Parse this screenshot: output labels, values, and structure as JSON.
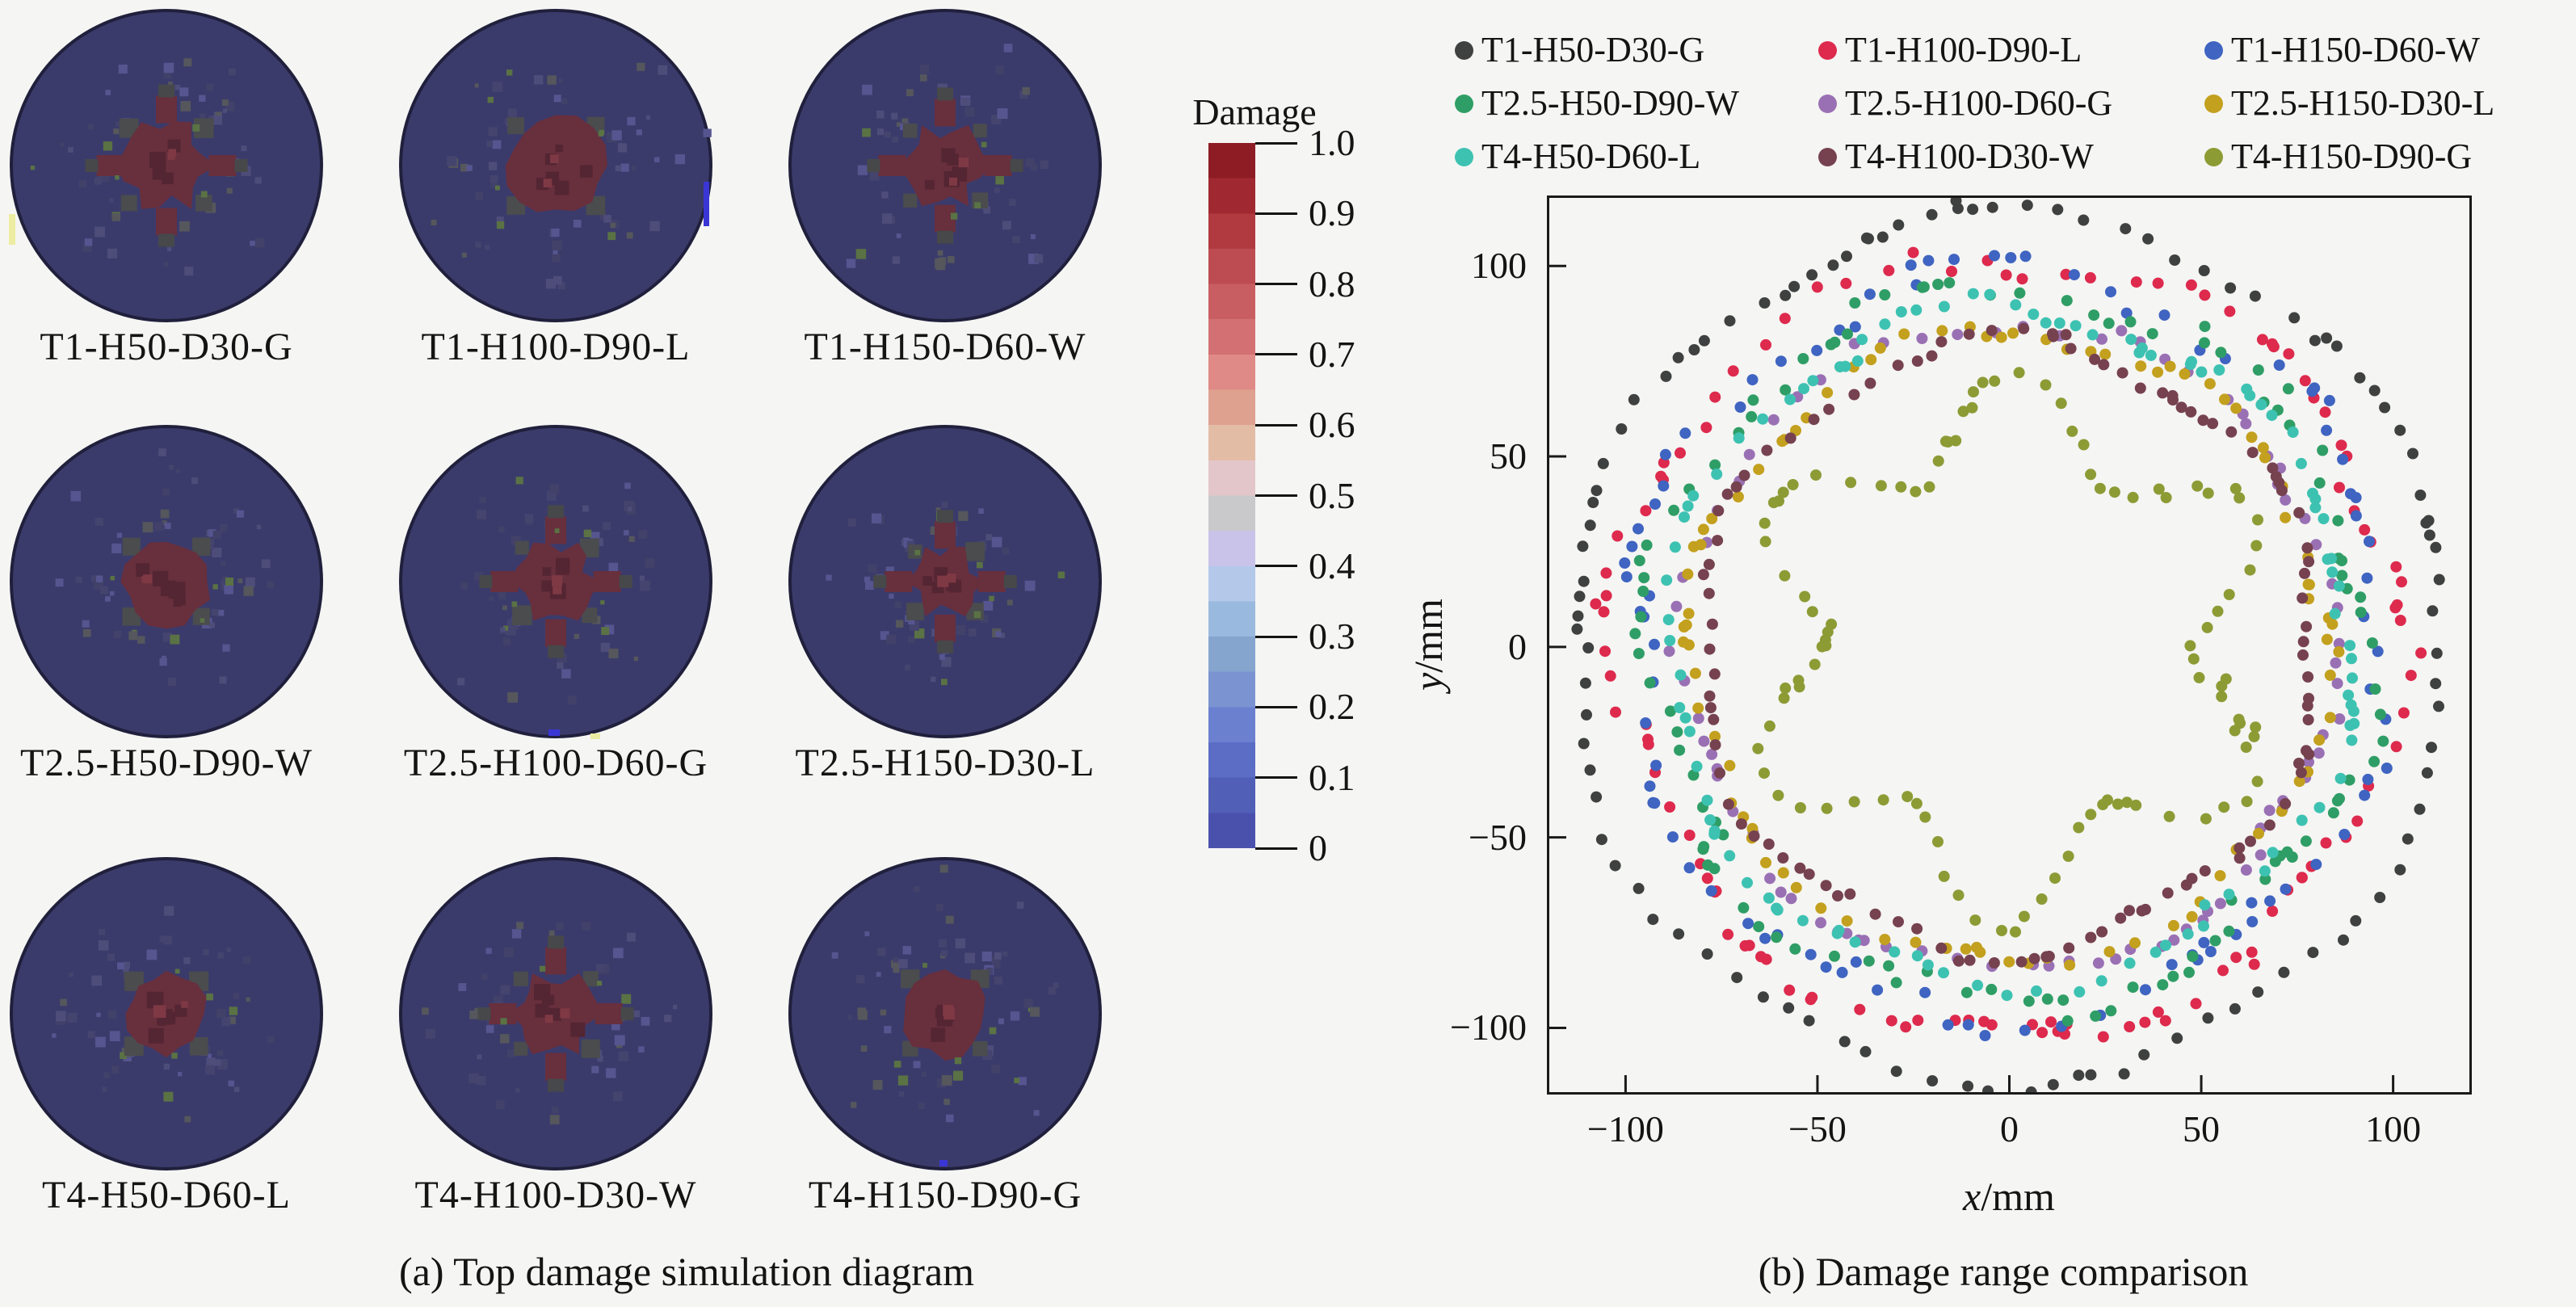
{
  "colors": {
    "background": "#f5f5f3",
    "disc": "#3b3b6b",
    "disc_rim": "#20203d",
    "core": "#682f3d",
    "core_dark": "#542532",
    "core_bright": "#7e3945",
    "gray_speckle": "#4a4c4e",
    "text": "#141414",
    "axis": "#1a1a1a"
  },
  "panel_a": {
    "caption": "(a) Top damage simulation diagram"
  },
  "panel_b": {
    "caption": "(b) Damage range comparison",
    "xlabel_var": "x",
    "xlabel_unit": "/mm",
    "ylabel_var": "y",
    "ylabel_unit": "/mm"
  },
  "chart_data": [
    {
      "type": "heatmap",
      "title": "(a) Top damage simulation diagram",
      "description": "3x3 grid of circular top-view damage simulation maps; dark navy disc with dark-red damaged core at center",
      "colorbar": {
        "title": "Damage",
        "range": [
          0,
          1
        ],
        "tick_labels": [
          "1.0",
          "0.9",
          "0.8",
          "0.7",
          "0.6",
          "0.5",
          "0.4",
          "0.3",
          "0.2",
          "0.1",
          "0"
        ],
        "colors_top_to_bottom": [
          "#8e1c25",
          "#a02931",
          "#b03a40",
          "#bd4c52",
          "#c95e62",
          "#d37073",
          "#df8a86",
          "#dfa18f",
          "#e3bca6",
          "#e2c6c9",
          "#c9c9cb",
          "#c9c3e9",
          "#b4c8ea",
          "#9ab9de",
          "#85a5cf",
          "#7b94d1",
          "#6c80d0",
          "#5c6dc5",
          "#5160b6",
          "#4a51ad"
        ]
      },
      "cells": [
        {
          "label": "T1-H50-D30-G",
          "core_shape": "star",
          "core_size": 0.3
        },
        {
          "label": "T1-H100-D90-L",
          "core_shape": "round",
          "core_size": 0.32
        },
        {
          "label": "T1-H150-D60-W",
          "core_shape": "star",
          "core_size": 0.28
        },
        {
          "label": "T2.5-H50-D90-W",
          "core_shape": "round",
          "core_size": 0.28
        },
        {
          "label": "T2.5-H100-D60-G",
          "core_shape": "star",
          "core_size": 0.27
        },
        {
          "label": "T2.5-H150-D30-L",
          "core_shape": "star",
          "core_size": 0.24
        },
        {
          "label": "T4-H50-D60-L",
          "core_shape": "round",
          "core_size": 0.26
        },
        {
          "label": "T4-H100-D30-W",
          "core_shape": "star",
          "core_size": 0.28
        },
        {
          "label": "T4-H150-D90-G",
          "core_shape": "round",
          "core_size": 0.28
        }
      ]
    },
    {
      "type": "scatter",
      "title": "(b) Damage range comparison",
      "xlabel": "x/mm",
      "ylabel": "y/mm",
      "xlim": [
        -120.5,
        120.5
      ],
      "ylim": [
        -117.5,
        118.5
      ],
      "x_ticks": [
        -100,
        -50,
        0,
        50,
        100
      ],
      "y_ticks": [
        100,
        50,
        0,
        -50,
        -100
      ],
      "x_tick_labels": [
        "−100",
        "−50",
        "0",
        "50",
        "100"
      ],
      "y_tick_labels": [
        "100",
        "50",
        "0",
        "−50",
        "−100"
      ],
      "grid": false,
      "legend_position": "top",
      "marker_diameter_mm": 3,
      "series": [
        {
          "name": "T1-H50-D30-G",
          "color": "#3f4141",
          "base_radius_mm": 114,
          "lobes": 6,
          "lobe_amp_mm": 3,
          "phase_rad": 3.0,
          "n_points": 86,
          "radial_jitter_mm": 1.6,
          "pair_prob": 0.18,
          "radius_range_mm": [
            109,
            119
          ]
        },
        {
          "name": "T1-H100-D90-L",
          "color": "#dd2a4d",
          "base_radius_mm": 102,
          "lobes": 6,
          "lobe_amp_mm": 4,
          "phase_rad": 0.7,
          "n_points": 70,
          "radial_jitter_mm": 2.6,
          "pair_prob": 0.3,
          "radius_range_mm": [
            96,
            108
          ]
        },
        {
          "name": "T1-H150-D60-W",
          "color": "#3f64c1",
          "base_radius_mm": 98,
          "lobes": 6,
          "lobe_amp_mm": 4.5,
          "phase_rad": 2.5,
          "n_points": 62,
          "radial_jitter_mm": 3.0,
          "pair_prob": 0.4,
          "radius_range_mm": [
            91,
            106
          ]
        },
        {
          "name": "T2.5-H50-D90-W",
          "color": "#2f9e66",
          "base_radius_mm": 94,
          "lobes": 6,
          "lobe_amp_mm": 4,
          "phase_rad": 1.3,
          "n_points": 66,
          "radial_jitter_mm": 3.0,
          "pair_prob": 0.38,
          "radius_range_mm": [
            87,
            101
          ]
        },
        {
          "name": "T2.5-H100-D60-G",
          "color": "#9a70b4",
          "base_radius_mm": 85,
          "lobes": 6,
          "lobe_amp_mm": 2.5,
          "phase_rad": 0.3,
          "n_points": 58,
          "radial_jitter_mm": 1.8,
          "pair_prob": 0.3,
          "radius_range_mm": [
            81,
            89
          ]
        },
        {
          "name": "T2.5-H150-D30-L",
          "color": "#c3a01e",
          "base_radius_mm": 83,
          "lobes": 6,
          "lobe_amp_mm": 2.5,
          "phase_rad": 1.1,
          "n_points": 60,
          "radial_jitter_mm": 1.6,
          "pair_prob": 0.3,
          "radius_range_mm": [
            79,
            87
          ]
        },
        {
          "name": "T4-H50-D60-L",
          "color": "#3dc2b2",
          "base_radius_mm": 89,
          "lobes": 6,
          "lobe_amp_mm": 3,
          "phase_rad": 2.1,
          "n_points": 68,
          "radial_jitter_mm": 1.8,
          "pair_prob": 0.32,
          "radius_range_mm": [
            84,
            94
          ]
        },
        {
          "name": "T4-H100-D30-W",
          "color": "#76424f",
          "base_radius_mm": 80,
          "lobes": 6,
          "lobe_amp_mm": 3,
          "phase_rad": 3.1,
          "n_points": 74,
          "radial_jitter_mm": 1.2,
          "pair_prob": 0.45,
          "radius_range_mm": [
            76,
            84
          ]
        },
        {
          "name": "T4-H150-D90-G",
          "color": "#8d9b35",
          "base_radius_mm": 60,
          "lobes": 6,
          "lobe_amp_mm": 13,
          "phase_rad": 3.3,
          "n_points": 78,
          "radial_jitter_mm": 1.6,
          "pair_prob": 0.22,
          "radius_range_mm": [
            46,
            74
          ]
        }
      ]
    }
  ]
}
